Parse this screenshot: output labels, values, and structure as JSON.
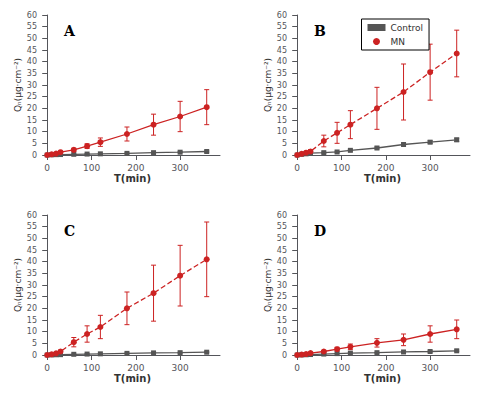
{
  "chart_data": [
    {
      "type": "line",
      "title": "A",
      "xlabel": "T(min)",
      "ylabel": "Qₙ(μg·cm⁻²)",
      "x": [
        0,
        10,
        20,
        30,
        60,
        90,
        120,
        180,
        240,
        300,
        360
      ],
      "xlim": [
        -5,
        390
      ],
      "xticks": [
        0,
        100,
        200,
        300
      ],
      "ylim": [
        0,
        60
      ],
      "yticks": [
        0,
        5,
        10,
        15,
        20,
        25,
        30,
        35,
        40,
        45,
        50,
        55,
        60
      ],
      "grid": false,
      "series": [
        {
          "name": "Control",
          "color": "#555555",
          "marker": "square",
          "line_style": "solid",
          "values": [
            0,
            0.1,
            0.15,
            0.2,
            0.3,
            0.4,
            0.5,
            0.7,
            1.0,
            1.2,
            1.5
          ],
          "errors": [
            0,
            0.05,
            0.05,
            0.05,
            0.08,
            0.1,
            0.1,
            0.15,
            0.2,
            0.2,
            0.3
          ]
        },
        {
          "name": "MN",
          "color": "#cc2222",
          "marker": "circle",
          "line_style": "solid",
          "values": [
            0,
            0.3,
            0.6,
            1.2,
            2.2,
            3.8,
            5.5,
            9.0,
            13.0,
            16.5,
            20.5
          ],
          "errors": [
            0,
            0.15,
            0.25,
            0.4,
            0.7,
            1.0,
            1.8,
            3.0,
            4.5,
            6.5,
            7.5
          ]
        }
      ]
    },
    {
      "type": "line",
      "title": "B",
      "xlabel": "T(min)",
      "ylabel": "Qₙ(μg·cm⁻²)",
      "x": [
        0,
        10,
        20,
        30,
        60,
        90,
        120,
        180,
        240,
        300,
        360
      ],
      "xlim": [
        -5,
        390
      ],
      "xticks": [
        0,
        100,
        200,
        300
      ],
      "ylim": [
        0,
        60
      ],
      "yticks": [
        0,
        5,
        10,
        15,
        20,
        25,
        30,
        35,
        40,
        45,
        50,
        55,
        60
      ],
      "grid": false,
      "legend": "upper center",
      "series": [
        {
          "name": "Control",
          "color": "#555555",
          "marker": "square",
          "line_style": "solid",
          "values": [
            0,
            0.3,
            0.5,
            0.8,
            1.0,
            1.3,
            2.0,
            3.0,
            4.5,
            5.5,
            6.5
          ],
          "errors": [
            0,
            0.1,
            0.12,
            0.15,
            0.2,
            0.3,
            0.3,
            0.4,
            0.5,
            0.6,
            0.7
          ]
        },
        {
          "name": "MN",
          "color": "#cc2222",
          "marker": "circle",
          "line_style": "dashed",
          "values": [
            0,
            0.5,
            1.0,
            1.5,
            6.0,
            9.5,
            13.0,
            20.0,
            27.0,
            35.5,
            43.5
          ],
          "errors": [
            0,
            0.2,
            0.4,
            0.8,
            2.5,
            4.5,
            6.0,
            9.0,
            12.0,
            12.0,
            10.0
          ]
        }
      ]
    },
    {
      "type": "line",
      "title": "C",
      "xlabel": "T(min)",
      "ylabel": "Qₙ(μg·cm⁻²)",
      "x": [
        0,
        10,
        20,
        30,
        60,
        90,
        120,
        180,
        240,
        300,
        360
      ],
      "xlim": [
        -5,
        390
      ],
      "xticks": [
        0,
        100,
        200,
        300
      ],
      "ylim": [
        0,
        60
      ],
      "yticks": [
        0,
        5,
        10,
        15,
        20,
        25,
        30,
        35,
        40,
        45,
        50,
        55,
        60
      ],
      "grid": false,
      "series": [
        {
          "name": "Control",
          "color": "#555555",
          "marker": "square",
          "line_style": "solid",
          "values": [
            0,
            0.05,
            0.1,
            0.15,
            0.3,
            0.4,
            0.5,
            0.7,
            0.9,
            1.0,
            1.2
          ],
          "errors": [
            0,
            0.03,
            0.05,
            0.05,
            0.07,
            0.08,
            0.1,
            0.12,
            0.15,
            0.18,
            0.2
          ]
        },
        {
          "name": "MN",
          "color": "#cc2222",
          "marker": "circle",
          "line_style": "dashed",
          "values": [
            0,
            0.3,
            0.7,
            1.5,
            5.5,
            9.0,
            12.0,
            20.0,
            26.5,
            34.0,
            41.0
          ],
          "errors": [
            0,
            0.15,
            0.3,
            0.6,
            2.0,
            3.5,
            5.0,
            7.0,
            12.0,
            13.0,
            16.0
          ]
        }
      ]
    },
    {
      "type": "line",
      "title": "D",
      "xlabel": "T(min)",
      "ylabel": "Qₙ(μg·cm⁻²)",
      "x": [
        0,
        10,
        20,
        30,
        60,
        90,
        120,
        180,
        240,
        300,
        360
      ],
      "xlim": [
        -5,
        390
      ],
      "xticks": [
        0,
        100,
        200,
        300
      ],
      "ylim": [
        0,
        60
      ],
      "yticks": [
        0,
        5,
        10,
        15,
        20,
        25,
        30,
        35,
        40,
        45,
        50,
        55,
        60
      ],
      "grid": false,
      "series": [
        {
          "name": "Control",
          "color": "#555555",
          "marker": "square",
          "line_style": "solid",
          "values": [
            0,
            0.05,
            0.1,
            0.2,
            0.4,
            0.6,
            0.8,
            1.0,
            1.3,
            1.5,
            1.8
          ],
          "errors": [
            0,
            0.03,
            0.05,
            0.07,
            0.1,
            0.1,
            0.12,
            0.15,
            0.2,
            0.25,
            0.3
          ]
        },
        {
          "name": "MN",
          "color": "#cc2222",
          "marker": "circle",
          "line_style": "solid",
          "values": [
            0,
            0.2,
            0.4,
            0.8,
            1.5,
            2.5,
            3.5,
            5.2,
            6.5,
            9.0,
            11.0
          ],
          "errors": [
            0,
            0.1,
            0.15,
            0.3,
            0.5,
            0.8,
            1.2,
            1.8,
            2.5,
            3.5,
            4.0
          ]
        }
      ]
    }
  ]
}
